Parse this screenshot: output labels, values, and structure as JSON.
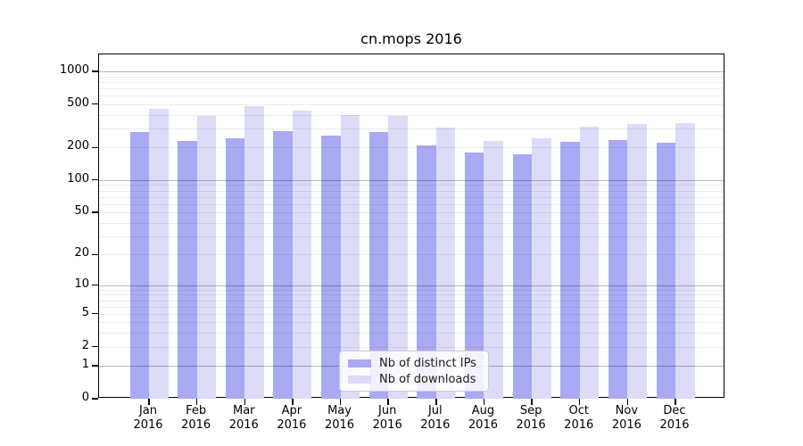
{
  "chart_data": {
    "type": "bar",
    "title": "cn.mops 2016",
    "yscale": "log1p",
    "ylim": [
      0,
      1429
    ],
    "yticks": [
      0,
      1,
      2,
      5,
      10,
      20,
      50,
      100,
      200,
      500,
      1000
    ],
    "major_gridlines": [
      1,
      10,
      100,
      1000
    ],
    "minor_gridlines": [
      2,
      3,
      4,
      5,
      6,
      7,
      8,
      9,
      20,
      30,
      40,
      50,
      60,
      70,
      80,
      90,
      200,
      300,
      400,
      500,
      600,
      700,
      800,
      900
    ],
    "categories": [
      "Jan",
      "Feb",
      "Mar",
      "Apr",
      "May",
      "Jun",
      "Jul",
      "Aug",
      "Sep",
      "Oct",
      "Nov",
      "Dec"
    ],
    "x_sublabel": "2016",
    "grid": true,
    "legend_position": "lower center",
    "series": [
      {
        "name": "Nb of distinct IPs",
        "color": "#a9a9f4",
        "values": [
          278,
          231,
          241,
          284,
          257,
          275,
          208,
          180,
          174,
          224,
          235,
          221
        ]
      },
      {
        "name": "Nb of downloads",
        "color": "#dcdcf8",
        "values": [
          455,
          387,
          476,
          438,
          394,
          389,
          302,
          231,
          242,
          310,
          326,
          333
        ]
      }
    ]
  }
}
